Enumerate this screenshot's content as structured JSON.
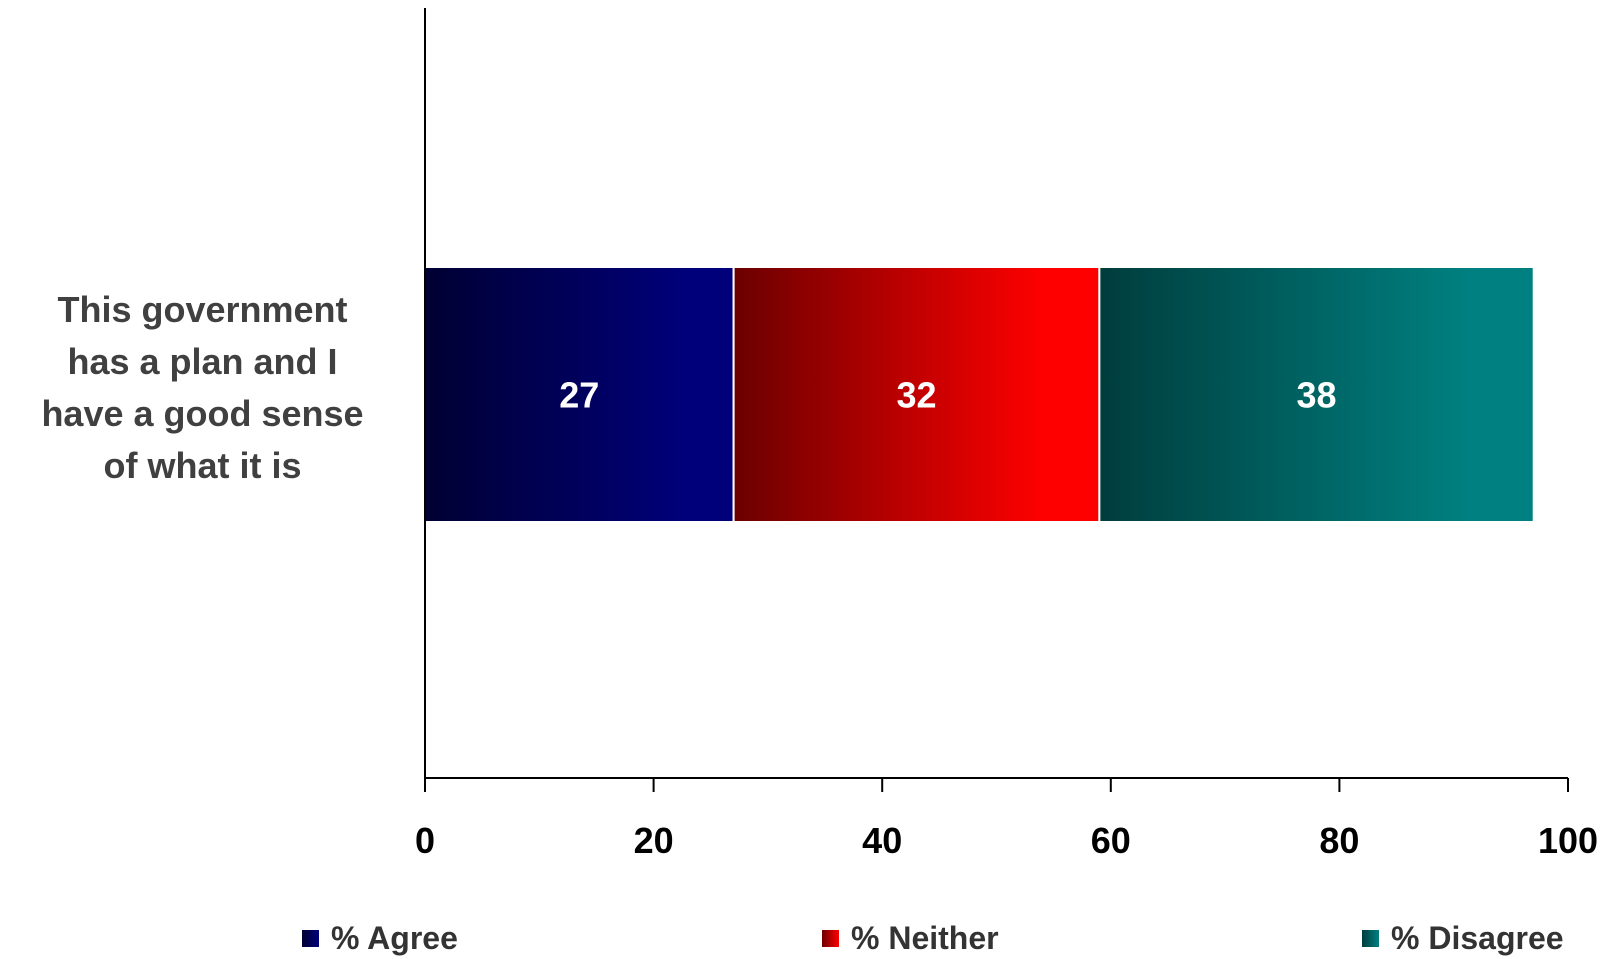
{
  "chart_data": {
    "type": "bar",
    "orientation": "horizontal",
    "stacked": true,
    "categories": [
      [
        "This government",
        "has a plan and I",
        "have a good sense",
        "of what it is"
      ]
    ],
    "series": [
      {
        "name": "% Agree",
        "values": [
          27
        ],
        "color": "#00007a",
        "color_dark": "#000033"
      },
      {
        "name": "% Neither",
        "values": [
          32
        ],
        "color": "#ff0000",
        "color_dark": "#6b0000"
      },
      {
        "name": "% Disagree",
        "values": [
          38
        ],
        "color": "#008080",
        "color_dark": "#003d3d"
      }
    ],
    "xlim": [
      0,
      100
    ],
    "xticks": [
      "0",
      "20",
      "40",
      "60",
      "80",
      "100"
    ],
    "grid": false,
    "legend": "bottom",
    "data_label_color": "#ffffff",
    "axis_color": "#000000",
    "tick_label_color": "#000000"
  }
}
